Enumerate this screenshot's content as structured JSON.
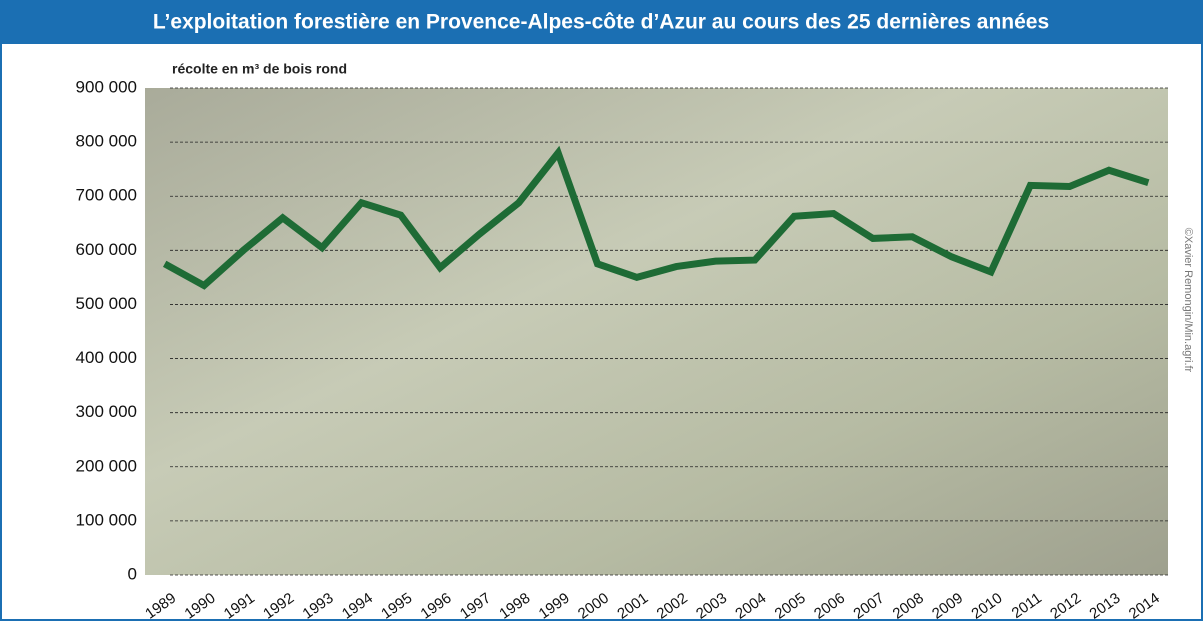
{
  "chart_data": {
    "type": "line",
    "title": "L’exploitation forestière en Provence-Alpes-côte d’Azur au cours des 25 dernières années",
    "y_label": "récolte en m³ de bois rond",
    "credit": "©Xavier Remongin/Min.agri.fr",
    "categories": [
      "1989",
      "1990",
      "1991",
      "1992",
      "1993",
      "1994",
      "1995",
      "1996",
      "1997",
      "1998",
      "1999",
      "2000",
      "2001",
      "2002",
      "2003",
      "2004",
      "2005",
      "2006",
      "2007",
      "2008",
      "2009",
      "2010",
      "2011",
      "2012",
      "2013",
      "2014"
    ],
    "series": [
      {
        "color": "#1e6b35",
        "values": [
          575000,
          535000,
          600000,
          660000,
          605000,
          688000,
          665000,
          568000,
          630000,
          688000,
          780000,
          575000,
          550000,
          570000,
          580000,
          582000,
          663000,
          668000,
          622000,
          625000,
          588000,
          560000,
          720000,
          718000,
          748000,
          725000
        ]
      }
    ],
    "ylim": [
      0,
      900000
    ],
    "yticks": [
      {
        "value": 0,
        "label": "0"
      },
      {
        "value": 100000,
        "label": "100 000"
      },
      {
        "value": 200000,
        "label": "200 000"
      },
      {
        "value": 300000,
        "label": "300 000"
      },
      {
        "value": 400000,
        "label": "400 000"
      },
      {
        "value": 500000,
        "label": "500 000"
      },
      {
        "value": 600000,
        "label": "600 000"
      },
      {
        "value": 700000,
        "label": "700 000"
      },
      {
        "value": 800000,
        "label": "800 000"
      },
      {
        "value": 900000,
        "label": "900 000"
      }
    ],
    "grid": true
  }
}
